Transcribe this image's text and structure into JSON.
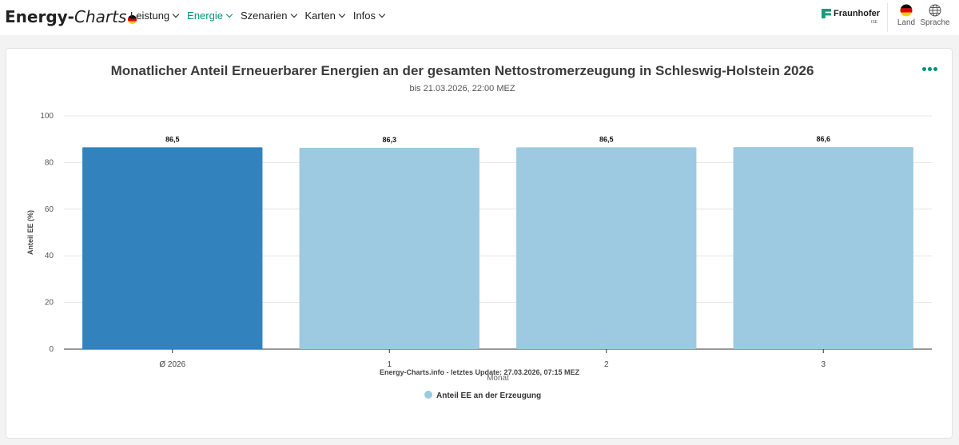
{
  "nav": {
    "logo_bold": "Energy-",
    "logo_italic": "Charts",
    "menu": [
      {
        "label": "Leistung",
        "active": false
      },
      {
        "label": "Energie",
        "active": true
      },
      {
        "label": "Szenarien",
        "active": false
      },
      {
        "label": "Karten",
        "active": false
      },
      {
        "label": "Infos",
        "active": false
      }
    ],
    "brand": "Fraunhofer",
    "brand_sub": "ISE",
    "country_label": "Land",
    "language_label": "Sprache",
    "accent_color": "#00917a"
  },
  "chart_data": {
    "type": "bar",
    "title": "Monatlicher Anteil Erneuerbarer Energien an der gesamten Nettostromerzeugung in Schleswig-Holstein 2026",
    "subtitle": "bis 21.03.2026, 22:00 MEZ",
    "categories": [
      "Ø 2026",
      "1",
      "2",
      "3"
    ],
    "values": [
      86.5,
      86.3,
      86.5,
      86.6
    ],
    "value_labels": [
      "86,5",
      "86,3",
      "86,5",
      "86,6"
    ],
    "bar_colors": [
      "#3182bd",
      "#9ecae1",
      "#9ecae1",
      "#9ecae1"
    ],
    "series": [
      {
        "name": "Anteil EE an der Erzeugung",
        "values": [
          86.5,
          86.3,
          86.5,
          86.6
        ],
        "color": "#9ecae1"
      }
    ],
    "xlabel": "Monat",
    "ylabel": "Anteil EE (%)",
    "ylim": [
      0,
      100
    ],
    "yticks": [
      0,
      20,
      40,
      60,
      80,
      100
    ],
    "grid": true,
    "legend_position": "bottom"
  },
  "footer": "Energy-Charts.info - letztes Update: 27.03.2026, 07:15 MEZ"
}
